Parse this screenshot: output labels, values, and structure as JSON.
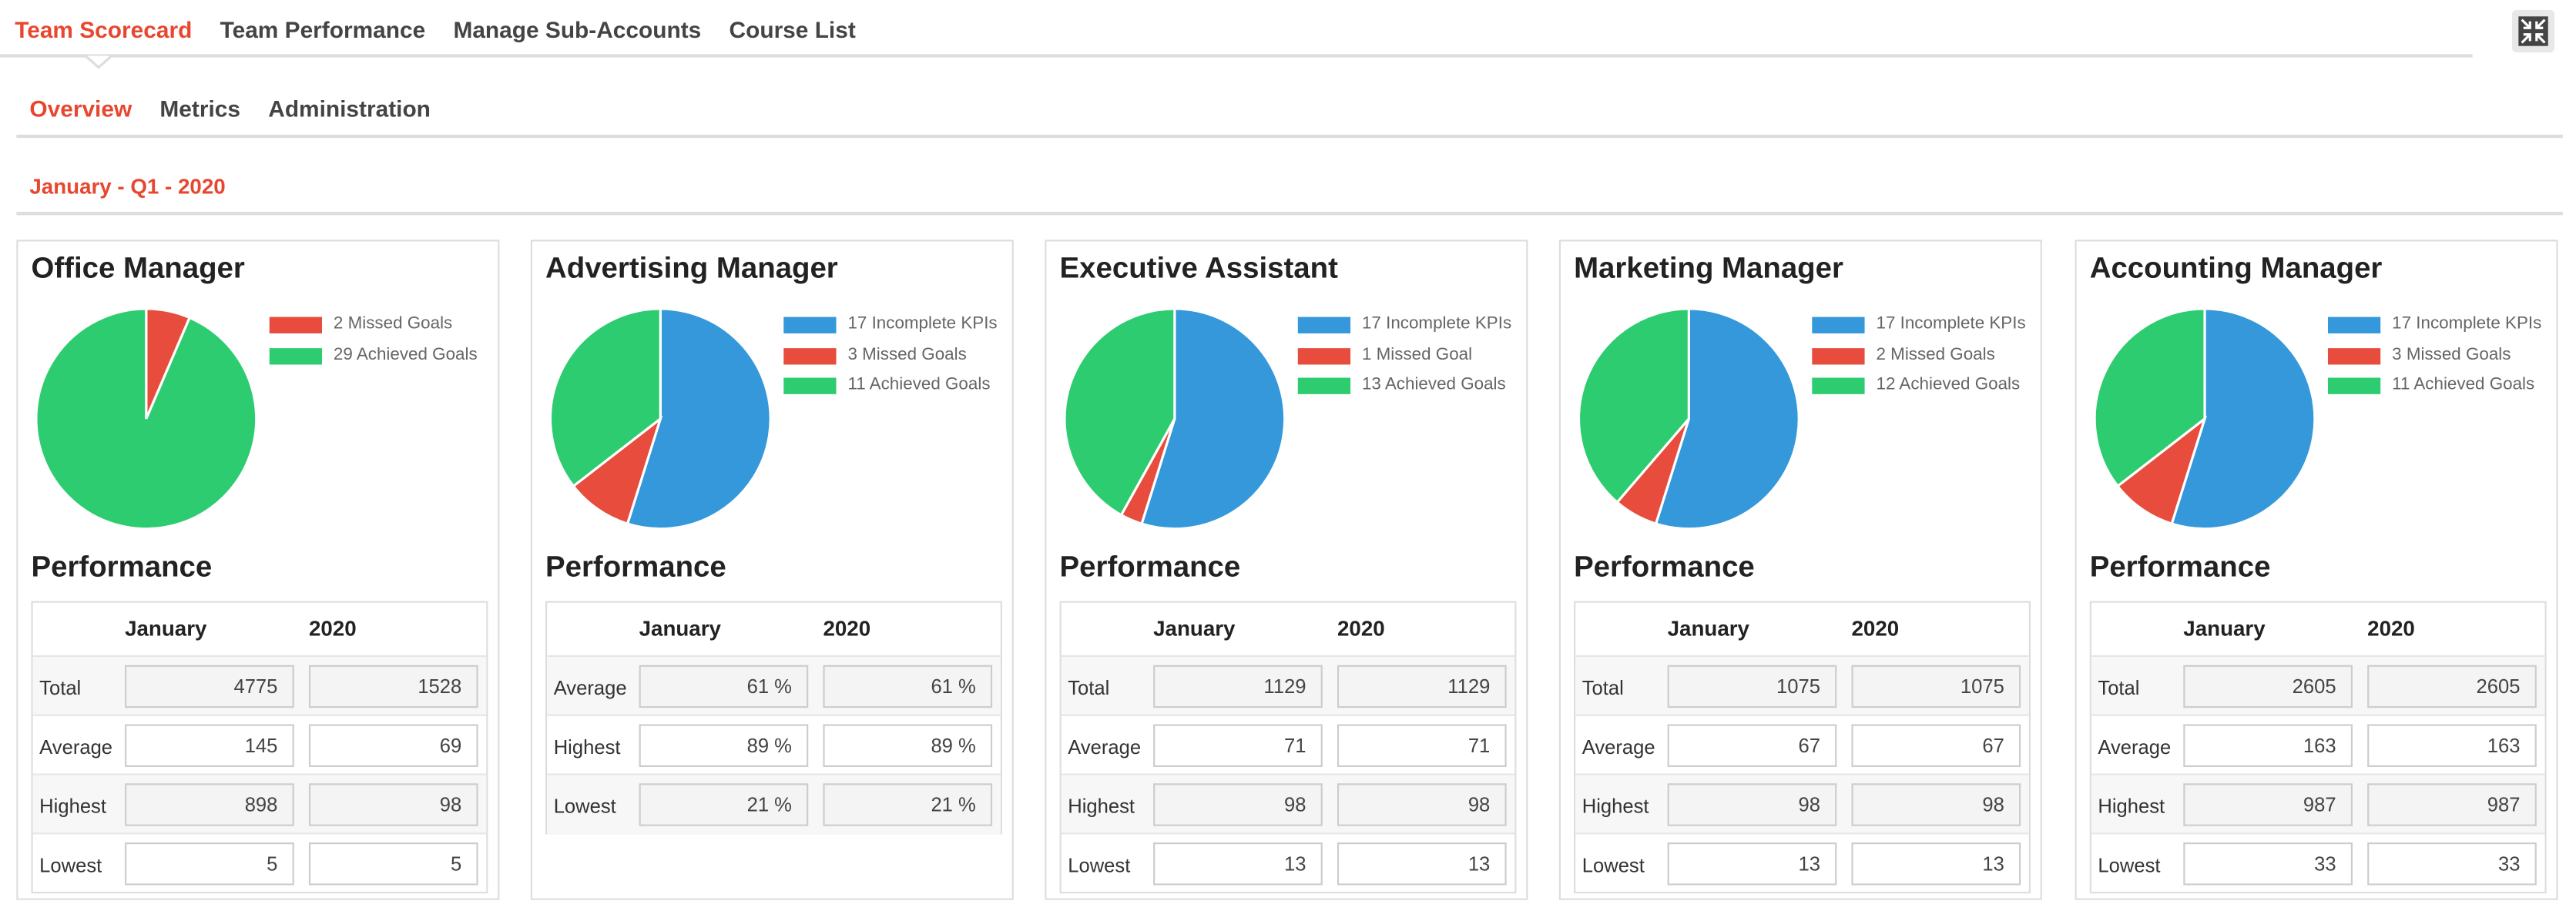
{
  "nav": {
    "tabs": [
      "Team Scorecard",
      "Team Performance",
      "Manage Sub-Accounts",
      "Course List"
    ],
    "subtabs": [
      "Overview",
      "Metrics",
      "Administration"
    ]
  },
  "period": "January - Q1 - 2020",
  "cards": [
    {
      "title": "Office Manager",
      "chart": {
        "type": "pie",
        "labels": [
          "2 Missed Goals",
          "29 Achieved Goals"
        ],
        "values": [
          2,
          29
        ],
        "colors": [
          "#e74c3c",
          "#2ecc71"
        ]
      },
      "performance_title": "Performance",
      "columns": [
        "January",
        "2020"
      ],
      "rows": [
        {
          "label": "Total",
          "values": [
            4775,
            1528
          ]
        },
        {
          "label": "Average",
          "values": [
            145,
            69
          ]
        },
        {
          "label": "Highest",
          "values": [
            898,
            98
          ]
        },
        {
          "label": "Lowest",
          "values": [
            5,
            5
          ]
        }
      ]
    },
    {
      "title": "Advertising Manager",
      "chart": {
        "type": "pie",
        "labels": [
          "17 Incomplete KPIs",
          "3 Missed Goals",
          "11 Achieved Goals"
        ],
        "values": [
          17,
          3,
          11
        ],
        "colors": [
          "#3498db",
          "#e74c3c",
          "#2ecc71"
        ]
      },
      "performance_title": "Performance",
      "columns": [
        "January",
        "2020"
      ],
      "rows": [
        {
          "label": "Average",
          "values": [
            "61 %",
            "61 %"
          ]
        },
        {
          "label": "Highest",
          "values": [
            "89 %",
            "89 %"
          ]
        },
        {
          "label": "Lowest",
          "values": [
            "21 %",
            "21 %"
          ]
        }
      ]
    },
    {
      "title": "Executive Assistant",
      "chart": {
        "type": "pie",
        "labels": [
          "17 Incomplete KPIs",
          "1 Missed Goal",
          "13 Achieved Goals"
        ],
        "values": [
          17,
          1,
          13
        ],
        "colors": [
          "#3498db",
          "#e74c3c",
          "#2ecc71"
        ]
      },
      "performance_title": "Performance",
      "columns": [
        "January",
        "2020"
      ],
      "rows": [
        {
          "label": "Total",
          "values": [
            1129,
            1129
          ]
        },
        {
          "label": "Average",
          "values": [
            71,
            71
          ]
        },
        {
          "label": "Highest",
          "values": [
            98,
            98
          ]
        },
        {
          "label": "Lowest",
          "values": [
            13,
            13
          ]
        }
      ]
    },
    {
      "title": "Marketing Manager",
      "chart": {
        "type": "pie",
        "labels": [
          "17 Incomplete KPIs",
          "2 Missed Goals",
          "12 Achieved Goals"
        ],
        "values": [
          17,
          2,
          12
        ],
        "colors": [
          "#3498db",
          "#e74c3c",
          "#2ecc71"
        ]
      },
      "performance_title": "Performance",
      "columns": [
        "January",
        "2020"
      ],
      "rows": [
        {
          "label": "Total",
          "values": [
            1075,
            1075
          ]
        },
        {
          "label": "Average",
          "values": [
            67,
            67
          ]
        },
        {
          "label": "Highest",
          "values": [
            98,
            98
          ]
        },
        {
          "label": "Lowest",
          "values": [
            13,
            13
          ]
        }
      ]
    },
    {
      "title": "Accounting Manager",
      "chart": {
        "type": "pie",
        "labels": [
          "17 Incomplete KPIs",
          "3 Missed Goals",
          "11 Achieved Goals"
        ],
        "values": [
          17,
          3,
          11
        ],
        "colors": [
          "#3498db",
          "#e74c3c",
          "#2ecc71"
        ]
      },
      "performance_title": "Performance",
      "columns": [
        "January",
        "2020"
      ],
      "rows": [
        {
          "label": "Total",
          "values": [
            2605,
            2605
          ]
        },
        {
          "label": "Average",
          "values": [
            163,
            163
          ]
        },
        {
          "label": "Highest",
          "values": [
            987,
            987
          ]
        },
        {
          "label": "Lowest",
          "values": [
            33,
            33
          ]
        }
      ]
    }
  ]
}
